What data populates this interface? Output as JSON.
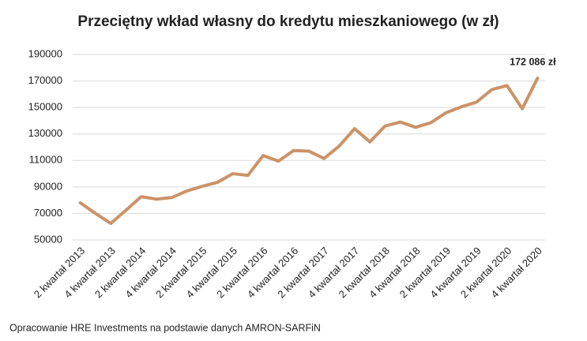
{
  "chart_data": {
    "type": "line",
    "title": "Przeciętny wkład własny do kredytu mieszkaniowego (w zł)",
    "source": "Opracowanie HRE Investments na podstawie danych AMRON-SARFiN",
    "categories": [
      "2 kwartał 2013",
      null,
      "4 kwartał 2013",
      null,
      "2 kwartał 2014",
      null,
      "4 kwartał 2014",
      null,
      "2 kwartał 2015",
      null,
      "4 kwartał 2015",
      null,
      "2 kwartał 2016",
      null,
      "4 kwartał 2016",
      null,
      "2 kwartał 2017",
      null,
      "4 kwartał 2017",
      null,
      "2 kwartał 2018",
      null,
      "4 kwartał 2018",
      null,
      "2 kwartał 2019",
      null,
      "4 kwartał 2019",
      null,
      "2 kwartał 2020",
      null,
      "4 kwartał 2020"
    ],
    "values": [
      78000,
      70000,
      62500,
      72500,
      82700,
      80800,
      82000,
      87000,
      90500,
      93500,
      100000,
      98800,
      113700,
      109500,
      117500,
      117000,
      111500,
      121000,
      134000,
      124000,
      136000,
      139000,
      135000,
      138500,
      146000,
      150500,
      154000,
      163500,
      166500,
      149000,
      172086
    ],
    "value_labels": [
      null,
      null,
      null,
      null,
      null,
      null,
      null,
      null,
      null,
      null,
      null,
      null,
      null,
      null,
      null,
      null,
      null,
      null,
      null,
      null,
      null,
      null,
      null,
      null,
      null,
      null,
      null,
      null,
      null,
      null,
      "172 086 zł"
    ],
    "color": "#cc9268",
    "ylim": [
      50000,
      190000
    ],
    "yticks": [
      50000,
      70000,
      90000,
      110000,
      130000,
      150000,
      170000,
      190000
    ],
    "grid": true
  }
}
